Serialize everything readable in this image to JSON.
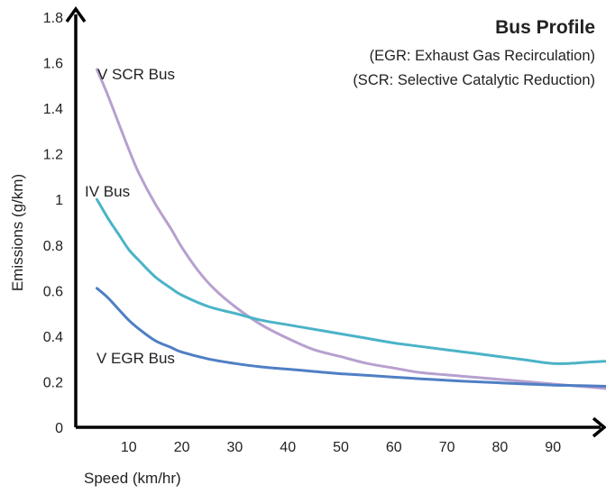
{
  "chart_data": {
    "type": "line",
    "title": "Bus Profile",
    "subtitle_lines": [
      "(EGR: Exhaust Gas Recirculation)",
      "(SCR: Selective Catalytic Reduction)"
    ],
    "xlabel": "Speed (km/hr)",
    "ylabel": "Emissions (g/km)",
    "xlim": [
      0,
      100
    ],
    "ylim": [
      0,
      1.8
    ],
    "x_ticks": [
      "10",
      "20",
      "30",
      "40",
      "50",
      "60",
      "70",
      "80",
      "90"
    ],
    "y_ticks": [
      "0",
      "0.2",
      "0.4",
      "0.6",
      "0.8",
      "1",
      "1.2",
      "1.4",
      "1.6",
      "1.8"
    ],
    "grid": false,
    "legend": "labels placed next to series lines",
    "series": [
      {
        "name": "V SCR Bus",
        "color": "#b7a0cf",
        "points": [
          [
            4,
            1.57
          ],
          [
            6,
            1.46
          ],
          [
            8,
            1.34
          ],
          [
            10,
            1.22
          ],
          [
            12,
            1.11
          ],
          [
            15,
            0.98
          ],
          [
            18,
            0.87
          ],
          [
            20,
            0.79
          ],
          [
            23,
            0.69
          ],
          [
            26,
            0.61
          ],
          [
            30,
            0.53
          ],
          [
            35,
            0.45
          ],
          [
            40,
            0.39
          ],
          [
            45,
            0.34
          ],
          [
            50,
            0.31
          ],
          [
            55,
            0.28
          ],
          [
            60,
            0.26
          ],
          [
            65,
            0.24
          ],
          [
            70,
            0.23
          ],
          [
            75,
            0.22
          ],
          [
            80,
            0.21
          ],
          [
            85,
            0.2
          ],
          [
            90,
            0.19
          ],
          [
            95,
            0.18
          ],
          [
            100,
            0.17
          ]
        ]
      },
      {
        "name": "IV Bus",
        "color": "#4bb3c7",
        "points": [
          [
            4,
            1.0
          ],
          [
            6,
            0.92
          ],
          [
            8,
            0.85
          ],
          [
            10,
            0.78
          ],
          [
            12,
            0.73
          ],
          [
            15,
            0.66
          ],
          [
            18,
            0.61
          ],
          [
            20,
            0.58
          ],
          [
            25,
            0.53
          ],
          [
            30,
            0.5
          ],
          [
            35,
            0.47
          ],
          [
            40,
            0.45
          ],
          [
            45,
            0.43
          ],
          [
            50,
            0.41
          ],
          [
            55,
            0.39
          ],
          [
            60,
            0.37
          ],
          [
            65,
            0.355
          ],
          [
            70,
            0.34
          ],
          [
            75,
            0.325
          ],
          [
            80,
            0.31
          ],
          [
            85,
            0.295
          ],
          [
            88,
            0.285
          ],
          [
            90,
            0.28
          ],
          [
            93,
            0.28
          ],
          [
            96,
            0.285
          ],
          [
            100,
            0.29
          ]
        ]
      },
      {
        "name": "V EGR Bus",
        "color": "#4f7fc4",
        "points": [
          [
            4,
            0.61
          ],
          [
            6,
            0.57
          ],
          [
            8,
            0.52
          ],
          [
            10,
            0.47
          ],
          [
            12,
            0.43
          ],
          [
            15,
            0.38
          ],
          [
            18,
            0.35
          ],
          [
            20,
            0.33
          ],
          [
            25,
            0.3
          ],
          [
            30,
            0.28
          ],
          [
            35,
            0.265
          ],
          [
            40,
            0.255
          ],
          [
            45,
            0.245
          ],
          [
            50,
            0.235
          ],
          [
            55,
            0.228
          ],
          [
            60,
            0.22
          ],
          [
            65,
            0.213
          ],
          [
            70,
            0.206
          ],
          [
            75,
            0.2
          ],
          [
            80,
            0.195
          ],
          [
            85,
            0.19
          ],
          [
            90,
            0.185
          ],
          [
            95,
            0.183
          ],
          [
            100,
            0.18
          ]
        ]
      }
    ]
  }
}
